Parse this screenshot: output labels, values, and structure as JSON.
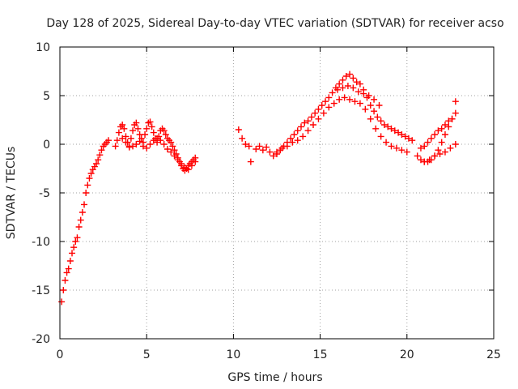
{
  "chart_data": {
    "type": "scatter",
    "title": "Day 128 of 2025, Sidereal Day-to-day VTEC variation (SDTVAR) for receiver acso",
    "xlabel": "GPS time / hours",
    "ylabel": "SDTVAR / TECUs",
    "xlim": [
      0,
      25
    ],
    "ylim": [
      -20,
      10
    ],
    "xticks": [
      0,
      5,
      10,
      15,
      20,
      25
    ],
    "yticks": [
      -20,
      -15,
      -10,
      -5,
      0,
      5,
      10
    ],
    "grid": true,
    "marker": "+",
    "series": [
      {
        "name": "SDTVAR",
        "color": "#ff0000",
        "x": [
          0.1,
          0.2,
          0.3,
          0.4,
          0.5,
          0.6,
          0.7,
          0.8,
          0.9,
          1.0,
          1.1,
          1.2,
          1.3,
          1.4,
          1.5,
          1.6,
          1.7,
          1.8,
          1.9,
          2.0,
          2.1,
          2.2,
          2.3,
          2.4,
          2.5,
          2.6,
          2.7,
          2.8,
          3.2,
          3.3,
          3.4,
          3.5,
          3.6,
          3.7,
          3.8,
          3.9,
          4.0,
          4.1,
          4.2,
          4.3,
          4.4,
          4.5,
          4.6,
          4.7,
          4.8,
          4.9,
          5.0,
          5.1,
          5.2,
          5.3,
          5.4,
          5.5,
          5.6,
          5.7,
          5.8,
          5.9,
          6.0,
          6.1,
          6.2,
          6.3,
          6.4,
          6.5,
          6.6,
          6.7,
          6.8,
          6.9,
          7.0,
          7.1,
          7.2,
          7.3,
          7.4,
          7.5,
          7.6,
          7.7,
          7.8,
          3.6,
          3.8,
          4.0,
          4.2,
          4.4,
          4.6,
          4.8,
          5.0,
          5.2,
          5.4,
          5.6,
          5.8,
          6.0,
          6.2,
          6.4,
          6.6,
          6.8,
          7.0,
          7.2,
          7.4,
          7.6,
          7.8,
          10.3,
          10.5,
          10.7,
          10.9,
          11.0,
          11.3,
          11.5,
          11.7,
          11.9,
          12.1,
          12.3,
          12.5,
          12.7,
          12.9,
          13.1,
          13.3,
          13.5,
          13.7,
          13.9,
          14.1,
          14.3,
          14.5,
          14.7,
          14.9,
          15.1,
          15.3,
          15.5,
          15.7,
          15.9,
          16.1,
          16.3,
          16.5,
          16.7,
          16.9,
          17.1,
          17.3,
          17.5,
          17.7,
          17.9,
          18.1,
          18.3,
          18.5,
          18.7,
          18.9,
          19.1,
          19.3,
          19.5,
          19.7,
          19.9,
          20.1,
          20.3,
          12.5,
          12.8,
          13.1,
          13.4,
          13.7,
          14.0,
          14.3,
          14.6,
          14.9,
          15.2,
          15.5,
          15.8,
          16.1,
          16.4,
          16.7,
          17.0,
          17.3,
          17.6,
          17.9,
          18.2,
          18.5,
          18.8,
          19.1,
          19.4,
          19.7,
          20.0,
          16.0,
          16.3,
          16.6,
          16.9,
          17.2,
          17.5,
          17.8,
          18.1,
          18.4,
          20.6,
          20.8,
          21.0,
          21.2,
          21.4,
          21.6,
          21.8,
          22.0,
          22.2,
          22.4,
          22.6,
          22.8,
          20.8,
          21.0,
          21.2,
          21.4,
          21.6,
          21.8,
          22.0,
          22.2,
          22.4,
          22.6,
          22.8,
          21.0,
          21.3,
          21.6,
          21.9,
          22.2,
          22.5,
          22.8
        ],
        "y": [
          -16.2,
          -15.0,
          -14.0,
          -13.2,
          -12.8,
          -12.0,
          -11.2,
          -10.6,
          -10.0,
          -9.6,
          -8.5,
          -7.8,
          -7.0,
          -6.2,
          -5.0,
          -4.2,
          -3.5,
          -3.0,
          -2.6,
          -2.3,
          -2.0,
          -1.6,
          -1.1,
          -0.6,
          -0.2,
          0.0,
          0.2,
          0.4,
          -0.2,
          0.4,
          1.2,
          1.8,
          2.0,
          1.6,
          0.8,
          0.2,
          -0.2,
          0.6,
          1.4,
          2.0,
          2.2,
          1.6,
          1.0,
          0.6,
          0.2,
          1.0,
          1.6,
          2.2,
          2.3,
          1.8,
          1.2,
          0.6,
          0.2,
          0.8,
          1.4,
          1.6,
          1.4,
          1.0,
          0.6,
          0.4,
          0.2,
          -0.2,
          -0.6,
          -1.0,
          -1.4,
          -1.8,
          -2.2,
          -2.5,
          -2.7,
          -2.5,
          -2.2,
          -2.0,
          -1.8,
          -1.6,
          -1.4,
          0.6,
          0.2,
          -0.3,
          -0.2,
          0.0,
          0.3,
          -0.2,
          -0.4,
          0.0,
          0.4,
          0.6,
          0.4,
          0.0,
          -0.5,
          -0.8,
          -1.2,
          -1.6,
          -2.0,
          -2.4,
          -2.6,
          -2.2,
          -1.8,
          1.5,
          0.6,
          0.0,
          -0.2,
          -1.8,
          -0.5,
          -0.2,
          -0.6,
          -0.3,
          -0.8,
          -1.2,
          -1.0,
          -0.6,
          -0.2,
          0.2,
          0.6,
          1.0,
          1.4,
          1.8,
          2.2,
          2.4,
          2.8,
          3.2,
          3.6,
          4.0,
          4.4,
          4.8,
          5.3,
          5.8,
          6.2,
          6.6,
          7.0,
          7.2,
          6.8,
          6.4,
          6.2,
          5.6,
          4.8,
          4.0,
          3.4,
          2.8,
          2.4,
          2.0,
          1.8,
          1.6,
          1.4,
          1.2,
          1.0,
          0.8,
          0.6,
          0.4,
          -0.8,
          -0.4,
          -0.2,
          0.2,
          0.4,
          0.8,
          1.4,
          2.0,
          2.6,
          3.2,
          3.8,
          4.2,
          4.6,
          4.8,
          4.6,
          4.4,
          4.2,
          3.6,
          2.6,
          1.6,
          0.8,
          0.2,
          -0.2,
          -0.4,
          -0.6,
          -0.8,
          5.6,
          5.8,
          6.0,
          5.8,
          5.4,
          5.2,
          5.0,
          4.6,
          4.0,
          -1.2,
          -1.6,
          -1.8,
          -1.8,
          -1.6,
          -1.2,
          -0.6,
          0.2,
          1.0,
          1.8,
          2.6,
          3.2,
          -0.4,
          -0.2,
          0.2,
          0.6,
          1.0,
          1.4,
          1.6,
          2.0,
          2.4,
          2.6,
          4.4,
          -1.8,
          -1.6,
          -1.2,
          -1.0,
          -0.8,
          -0.4,
          0.0
        ]
      }
    ]
  }
}
